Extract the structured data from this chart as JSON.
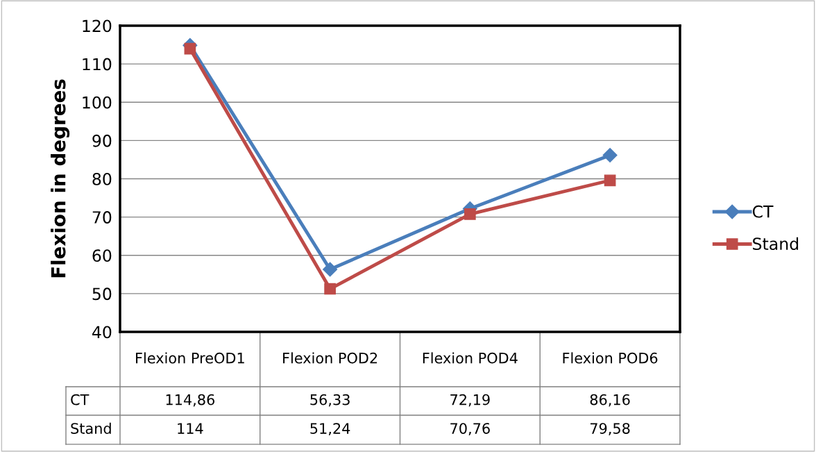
{
  "chart_data": {
    "type": "line",
    "ylabel": "Flexion in degrees",
    "categories": [
      "Flexion PreOD1",
      "Flexion POD2",
      "Flexion POD4",
      "Flexion POD6"
    ],
    "series": [
      {
        "name": "CT",
        "color": "#4a7ebb",
        "marker": "diamond",
        "values": [
          114.86,
          56.33,
          72.19,
          86.16
        ],
        "value_labels": [
          "114,86",
          "56,33",
          "72,19",
          "86,16"
        ]
      },
      {
        "name": "Stand",
        "color": "#be4b48",
        "marker": "square",
        "values": [
          114,
          51.24,
          70.76,
          79.58
        ],
        "value_labels": [
          "114",
          "51,24",
          "70,76",
          "79,58"
        ]
      }
    ],
    "ylim": [
      40,
      120
    ],
    "yticks": [
      40,
      50,
      60,
      70,
      80,
      90,
      100,
      110,
      120
    ],
    "grid": "y",
    "legend": "right",
    "line_style": "solid"
  }
}
